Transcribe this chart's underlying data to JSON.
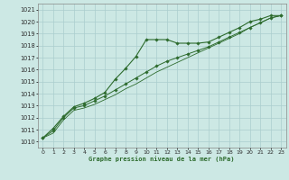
{
  "title": "Graphe pression niveau de la mer (hPa)",
  "xlabel": "Graphe pression niveau de la mer (hPa)",
  "bg_color": "#cce8e4",
  "grid_color": "#aacece",
  "line_color": "#2d6b2d",
  "ylim": [
    1009.5,
    1021.5
  ],
  "xlim": [
    -0.5,
    23.5
  ],
  "yticks": [
    1010,
    1011,
    1012,
    1013,
    1014,
    1015,
    1016,
    1017,
    1018,
    1019,
    1020,
    1021
  ],
  "xticks": [
    0,
    1,
    2,
    3,
    4,
    5,
    6,
    7,
    8,
    9,
    10,
    11,
    12,
    13,
    14,
    15,
    16,
    17,
    18,
    19,
    20,
    21,
    22,
    23
  ],
  "line1_x": [
    0,
    1,
    2,
    3,
    4,
    5,
    6,
    7,
    8,
    9,
    10,
    11,
    12,
    13,
    14,
    15,
    16,
    17,
    18,
    19,
    20,
    21,
    22,
    23
  ],
  "line1_y": [
    1010.3,
    1011.1,
    1012.1,
    1012.9,
    1013.2,
    1013.6,
    1014.1,
    1015.2,
    1016.1,
    1017.1,
    1018.5,
    1018.5,
    1018.5,
    1018.2,
    1018.2,
    1018.2,
    1018.3,
    1018.7,
    1019.1,
    1019.5,
    1020.0,
    1020.2,
    1020.5,
    1020.5
  ],
  "line2_x": [
    0,
    1,
    2,
    3,
    4,
    5,
    6,
    7,
    8,
    9,
    10,
    11,
    12,
    13,
    14,
    15,
    16,
    17,
    18,
    19,
    20,
    21,
    22,
    23
  ],
  "line2_y": [
    1010.3,
    1010.9,
    1012.0,
    1012.8,
    1013.0,
    1013.4,
    1013.8,
    1014.3,
    1014.8,
    1015.3,
    1015.8,
    1016.3,
    1016.7,
    1017.0,
    1017.3,
    1017.6,
    1017.9,
    1018.3,
    1018.7,
    1019.1,
    1019.5,
    1019.9,
    1020.3,
    1020.5
  ],
  "line3_x": [
    0,
    1,
    2,
    3,
    4,
    5,
    6,
    7,
    8,
    9,
    10,
    11,
    12,
    13,
    14,
    15,
    16,
    17,
    18,
    19,
    20,
    21,
    22,
    23
  ],
  "line3_y": [
    1010.3,
    1010.7,
    1011.8,
    1012.6,
    1012.8,
    1013.1,
    1013.5,
    1013.9,
    1014.4,
    1014.8,
    1015.3,
    1015.8,
    1016.2,
    1016.6,
    1017.0,
    1017.4,
    1017.8,
    1018.2,
    1018.6,
    1019.0,
    1019.5,
    1019.9,
    1020.3,
    1020.5
  ]
}
